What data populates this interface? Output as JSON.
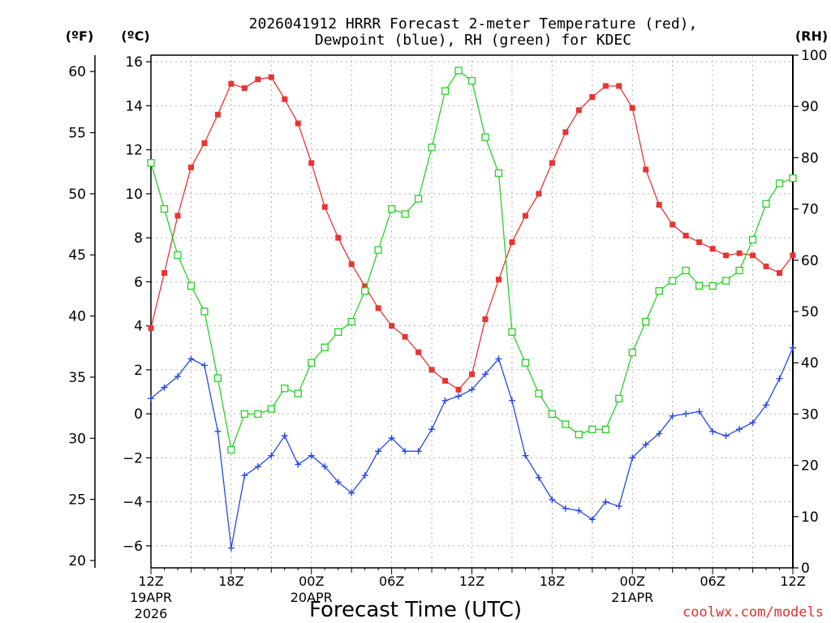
{
  "chart_data": {
    "type": "line",
    "title_line1": "2026041912 HRRR Forecast 2-meter Temperature (red),",
    "title_line2": "Dewpoint (blue), RH (green) for KDEC",
    "xlabel": "Forecast Time (UTC)",
    "credit": "coolwx.com/models",
    "units": {
      "fahrenheit": "(ºF)",
      "celsius": "(ºC)",
      "rh": "(RH)"
    },
    "y_celsius": {
      "range": [
        -7,
        16.3
      ],
      "ticks": [
        16,
        14,
        12,
        10,
        8,
        6,
        4,
        2,
        0,
        -2,
        -4,
        -6
      ]
    },
    "y_fahrenheit": {
      "ticks": [
        60,
        55,
        50,
        45,
        40,
        35,
        30,
        25,
        20
      ]
    },
    "y_rh": {
      "range": [
        0,
        100
      ],
      "ticks": [
        100,
        90,
        80,
        70,
        60,
        50,
        40,
        30,
        20,
        10,
        0
      ]
    },
    "x_ticks": [
      {
        "hour": 0,
        "label": "12Z",
        "sub1": "19APR",
        "sub2": "2026"
      },
      {
        "hour": 6,
        "label": "18Z",
        "sub1": "",
        "sub2": ""
      },
      {
        "hour": 12,
        "label": "00Z",
        "sub1": "20APR",
        "sub2": ""
      },
      {
        "hour": 18,
        "label": "06Z",
        "sub1": "",
        "sub2": ""
      },
      {
        "hour": 24,
        "label": "12Z",
        "sub1": "",
        "sub2": ""
      },
      {
        "hour": 30,
        "label": "18Z",
        "sub1": "",
        "sub2": ""
      },
      {
        "hour": 36,
        "label": "00Z",
        "sub1": "21APR",
        "sub2": ""
      },
      {
        "hour": 42,
        "label": "06Z",
        "sub1": "",
        "sub2": ""
      },
      {
        "hour": 48,
        "label": "12Z",
        "sub1": "",
        "sub2": ""
      }
    ],
    "x_hours": [
      0,
      1,
      2,
      3,
      4,
      5,
      6,
      7,
      8,
      9,
      10,
      11,
      12,
      13,
      14,
      15,
      16,
      17,
      18,
      19,
      20,
      21,
      22,
      23,
      24,
      25,
      26,
      27,
      28,
      29,
      30,
      31,
      32,
      33,
      34,
      35,
      36,
      37,
      38,
      39,
      40,
      41,
      42,
      43,
      44,
      45,
      46,
      47,
      48
    ],
    "grid": true,
    "series": [
      {
        "name": "2-meter Temperature",
        "color": "#e83434",
        "marker": "square-filled",
        "axis": "celsius",
        "values": [
          3.9,
          6.4,
          9.0,
          11.2,
          12.3,
          13.6,
          15.0,
          14.8,
          15.2,
          15.3,
          14.3,
          13.2,
          11.4,
          9.4,
          8.0,
          6.8,
          5.8,
          4.8,
          4.0,
          3.5,
          2.8,
          2.0,
          1.5,
          1.1,
          1.8,
          4.3,
          6.1,
          7.8,
          9.0,
          10.0,
          11.4,
          12.8,
          13.8,
          14.4,
          14.9,
          14.9,
          13.9,
          11.1,
          9.5,
          8.6,
          8.1,
          7.8,
          7.5,
          7.2,
          7.3,
          7.2,
          6.7,
          6.4,
          7.2
        ]
      },
      {
        "name": "Dewpoint",
        "color": "#2848e8",
        "marker": "plus",
        "axis": "celsius",
        "values": [
          0.7,
          1.2,
          1.7,
          2.5,
          2.2,
          -0.8,
          -6.1,
          -2.8,
          -2.4,
          -1.9,
          -1.0,
          -2.3,
          -1.9,
          -2.4,
          -3.1,
          -3.6,
          -2.8,
          -1.7,
          -1.1,
          -1.7,
          -1.7,
          -0.7,
          0.6,
          0.8,
          1.1,
          1.8,
          2.5,
          0.6,
          -1.9,
          -2.9,
          -3.9,
          -4.3,
          -4.4,
          -4.8,
          -4.0,
          -4.2,
          -2.0,
          -1.4,
          -0.9,
          -0.1,
          0.0,
          0.1,
          -0.8,
          -1.0,
          -0.7,
          -0.4,
          0.4,
          1.6,
          3.0
        ]
      },
      {
        "name": "RH",
        "color": "#28d028",
        "marker": "square-open",
        "axis": "rh",
        "values": [
          79,
          70,
          61,
          55,
          50,
          37,
          23,
          30,
          30,
          31,
          35,
          34,
          40,
          43,
          46,
          48,
          54,
          62,
          70,
          69,
          72,
          82,
          93,
          97,
          95,
          84,
          77,
          46,
          40,
          34,
          30,
          28,
          26,
          27,
          27,
          33,
          42,
          48,
          54,
          56,
          58,
          55,
          55,
          56,
          58,
          64,
          71,
          75,
          76
        ]
      }
    ]
  }
}
